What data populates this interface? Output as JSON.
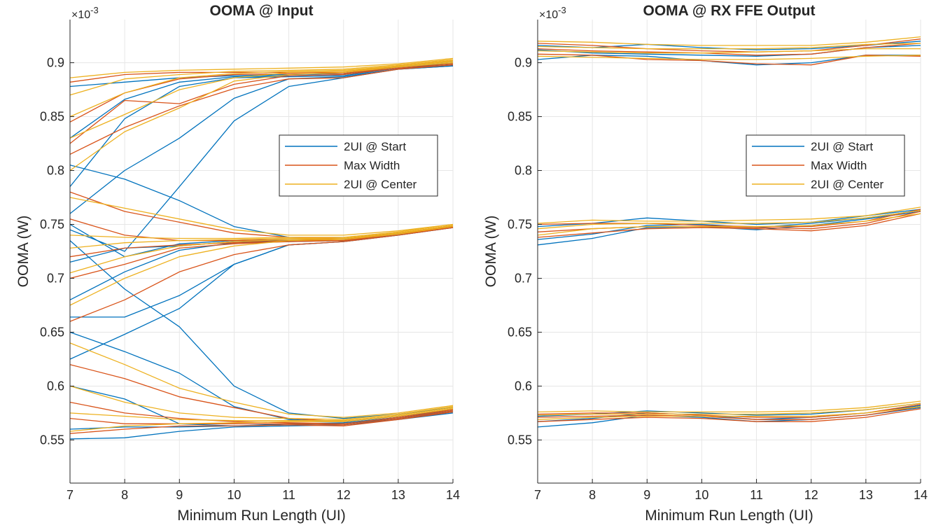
{
  "colors": {
    "start": "#0072bd",
    "max_width": "#d95319",
    "center": "#edb120",
    "grid": "#e6e6e6",
    "axis": "#262626"
  },
  "chart_data": [
    {
      "type": "line",
      "title": "OOMA @ Input",
      "xlabel": "Minimum Run Length (UI)",
      "ylabel": "OOMA (W)",
      "y_exponent": "×10",
      "y_exponent_power": "-3",
      "xlim": [
        7,
        14
      ],
      "ylim": [
        0.51,
        0.94
      ],
      "xticks": [
        "7",
        "8",
        "9",
        "10",
        "11",
        "12",
        "13",
        "14"
      ],
      "yticks": [
        "0.55",
        "0.6",
        "0.65",
        "0.7",
        "0.75",
        "0.8",
        "0.85",
        "0.9"
      ],
      "grid": true,
      "legend_position": "right-middle",
      "legend": [
        "2UI @ Start",
        "Max Width",
        "2UI @ Center"
      ],
      "x": [
        7,
        8,
        9,
        10,
        11,
        12,
        13,
        14
      ],
      "series": [
        {
          "group": "start",
          "values": [
            0.878,
            0.882,
            0.886,
            0.888,
            0.889,
            0.89,
            0.897,
            0.901
          ]
        },
        {
          "group": "start",
          "values": [
            0.83,
            0.866,
            0.882,
            0.887,
            0.888,
            0.889,
            0.896,
            0.899
          ]
        },
        {
          "group": "start",
          "values": [
            0.785,
            0.848,
            0.878,
            0.886,
            0.887,
            0.888,
            0.895,
            0.898
          ]
        },
        {
          "group": "start",
          "values": [
            0.76,
            0.8,
            0.83,
            0.867,
            0.885,
            0.887,
            0.894,
            0.897
          ]
        },
        {
          "group": "start",
          "values": [
            0.745,
            0.725,
            0.785,
            0.846,
            0.878,
            0.886,
            0.894,
            0.897
          ]
        },
        {
          "group": "start",
          "values": [
            0.805,
            0.792,
            0.772,
            0.748,
            0.738,
            0.737,
            0.742,
            0.748
          ]
        },
        {
          "group": "start",
          "values": [
            0.75,
            0.72,
            0.732,
            0.735,
            0.736,
            0.736,
            0.742,
            0.748
          ]
        },
        {
          "group": "start",
          "values": [
            0.715,
            0.728,
            0.73,
            0.734,
            0.735,
            0.735,
            0.741,
            0.748
          ]
        },
        {
          "group": "start",
          "values": [
            0.68,
            0.706,
            0.726,
            0.733,
            0.734,
            0.735,
            0.741,
            0.747
          ]
        },
        {
          "group": "start",
          "values": [
            0.664,
            0.664,
            0.684,
            0.713,
            0.731,
            0.734,
            0.74,
            0.747
          ]
        },
        {
          "group": "start",
          "values": [
            0.625,
            0.648,
            0.672,
            0.713,
            0.731,
            0.734,
            0.74,
            0.747
          ]
        },
        {
          "group": "start",
          "values": [
            0.735,
            0.69,
            0.655,
            0.6,
            0.575,
            0.57,
            0.574,
            0.58
          ]
        },
        {
          "group": "start",
          "values": [
            0.65,
            0.632,
            0.612,
            0.581,
            0.569,
            0.567,
            0.572,
            0.578
          ]
        },
        {
          "group": "start",
          "values": [
            0.6,
            0.588,
            0.565,
            0.563,
            0.565,
            0.566,
            0.571,
            0.577
          ]
        },
        {
          "group": "start",
          "values": [
            0.56,
            0.562,
            0.562,
            0.563,
            0.564,
            0.565,
            0.57,
            0.576
          ]
        },
        {
          "group": "start",
          "values": [
            0.551,
            0.552,
            0.558,
            0.562,
            0.563,
            0.564,
            0.569,
            0.575
          ]
        },
        {
          "group": "max_width",
          "values": [
            0.882,
            0.889,
            0.891,
            0.891,
            0.891,
            0.891,
            0.897,
            0.902
          ]
        },
        {
          "group": "max_width",
          "values": [
            0.845,
            0.872,
            0.885,
            0.889,
            0.89,
            0.89,
            0.896,
            0.9
          ]
        },
        {
          "group": "max_width",
          "values": [
            0.825,
            0.865,
            0.862,
            0.88,
            0.888,
            0.889,
            0.895,
            0.899
          ]
        },
        {
          "group": "max_width",
          "values": [
            0.815,
            0.84,
            0.86,
            0.876,
            0.885,
            0.886,
            0.894,
            0.898
          ]
        },
        {
          "group": "max_width",
          "values": [
            0.78,
            0.762,
            0.752,
            0.742,
            0.738,
            0.737,
            0.742,
            0.749
          ]
        },
        {
          "group": "max_width",
          "values": [
            0.755,
            0.74,
            0.735,
            0.735,
            0.736,
            0.736,
            0.742,
            0.748
          ]
        },
        {
          "group": "max_width",
          "values": [
            0.72,
            0.728,
            0.731,
            0.733,
            0.735,
            0.735,
            0.741,
            0.748
          ]
        },
        {
          "group": "max_width",
          "values": [
            0.7,
            0.713,
            0.728,
            0.732,
            0.734,
            0.735,
            0.741,
            0.747
          ]
        },
        {
          "group": "max_width",
          "values": [
            0.66,
            0.68,
            0.706,
            0.722,
            0.731,
            0.734,
            0.74,
            0.747
          ]
        },
        {
          "group": "max_width",
          "values": [
            0.62,
            0.607,
            0.59,
            0.58,
            0.57,
            0.567,
            0.572,
            0.579
          ]
        },
        {
          "group": "max_width",
          "values": [
            0.585,
            0.575,
            0.57,
            0.567,
            0.566,
            0.565,
            0.571,
            0.578
          ]
        },
        {
          "group": "max_width",
          "values": [
            0.57,
            0.565,
            0.565,
            0.565,
            0.565,
            0.564,
            0.57,
            0.577
          ]
        },
        {
          "group": "max_width",
          "values": [
            0.556,
            0.56,
            0.563,
            0.563,
            0.564,
            0.563,
            0.569,
            0.576
          ]
        },
        {
          "group": "center",
          "values": [
            0.886,
            0.891,
            0.893,
            0.894,
            0.895,
            0.896,
            0.899,
            0.904
          ]
        },
        {
          "group": "center",
          "values": [
            0.87,
            0.885,
            0.889,
            0.892,
            0.893,
            0.894,
            0.898,
            0.903
          ]
        },
        {
          "group": "center",
          "values": [
            0.85,
            0.872,
            0.886,
            0.89,
            0.892,
            0.893,
            0.897,
            0.902
          ]
        },
        {
          "group": "center",
          "values": [
            0.83,
            0.852,
            0.875,
            0.886,
            0.891,
            0.892,
            0.897,
            0.901
          ]
        },
        {
          "group": "center",
          "values": [
            0.8,
            0.836,
            0.858,
            0.883,
            0.889,
            0.891,
            0.896,
            0.9
          ]
        },
        {
          "group": "center",
          "values": [
            0.775,
            0.765,
            0.755,
            0.745,
            0.74,
            0.74,
            0.744,
            0.75
          ]
        },
        {
          "group": "center",
          "values": [
            0.74,
            0.738,
            0.737,
            0.737,
            0.738,
            0.738,
            0.743,
            0.75
          ]
        },
        {
          "group": "center",
          "values": [
            0.728,
            0.733,
            0.735,
            0.736,
            0.737,
            0.737,
            0.742,
            0.749
          ]
        },
        {
          "group": "center",
          "values": [
            0.705,
            0.72,
            0.73,
            0.734,
            0.736,
            0.737,
            0.742,
            0.749
          ]
        },
        {
          "group": "center",
          "values": [
            0.675,
            0.7,
            0.72,
            0.73,
            0.735,
            0.736,
            0.741,
            0.748
          ]
        },
        {
          "group": "center",
          "values": [
            0.64,
            0.62,
            0.598,
            0.585,
            0.574,
            0.571,
            0.575,
            0.582
          ]
        },
        {
          "group": "center",
          "values": [
            0.6,
            0.585,
            0.575,
            0.571,
            0.57,
            0.569,
            0.574,
            0.581
          ]
        },
        {
          "group": "center",
          "values": [
            0.575,
            0.572,
            0.569,
            0.568,
            0.568,
            0.568,
            0.573,
            0.58
          ]
        },
        {
          "group": "center",
          "values": [
            0.558,
            0.563,
            0.565,
            0.566,
            0.567,
            0.567,
            0.572,
            0.579
          ]
        }
      ]
    },
    {
      "type": "line",
      "title": "OOMA @ RX FFE Output",
      "xlabel": "Minimum Run Length (UI)",
      "ylabel": "OOMA (W)",
      "y_exponent": "×10",
      "y_exponent_power": "-3",
      "xlim": [
        7,
        14
      ],
      "ylim": [
        0.51,
        0.94
      ],
      "xticks": [
        "7",
        "8",
        "9",
        "10",
        "11",
        "12",
        "13",
        "14"
      ],
      "yticks": [
        "0.55",
        "0.6",
        "0.65",
        "0.7",
        "0.75",
        "0.8",
        "0.85",
        "0.9"
      ],
      "grid": true,
      "legend_position": "right-middle",
      "legend": [
        "2UI @ Start",
        "Max Width",
        "2UI @ Center"
      ],
      "x": [
        7,
        8,
        9,
        10,
        11,
        12,
        13,
        14
      ],
      "series": [
        {
          "group": "start",
          "values": [
            0.903,
            0.907,
            0.906,
            0.902,
            0.898,
            0.9,
            0.907,
            0.907
          ]
        },
        {
          "group": "start",
          "values": [
            0.912,
            0.909,
            0.908,
            0.907,
            0.906,
            0.908,
            0.914,
            0.916
          ]
        },
        {
          "group": "start",
          "values": [
            0.916,
            0.914,
            0.917,
            0.914,
            0.912,
            0.913,
            0.916,
            0.92
          ]
        },
        {
          "group": "start",
          "values": [
            0.731,
            0.737,
            0.747,
            0.748,
            0.745,
            0.749,
            0.755,
            0.762
          ]
        },
        {
          "group": "start",
          "values": [
            0.736,
            0.741,
            0.749,
            0.75,
            0.747,
            0.751,
            0.756,
            0.763
          ]
        },
        {
          "group": "start",
          "values": [
            0.748,
            0.751,
            0.756,
            0.753,
            0.75,
            0.752,
            0.758,
            0.764
          ]
        },
        {
          "group": "start",
          "values": [
            0.562,
            0.566,
            0.573,
            0.571,
            0.567,
            0.569,
            0.573,
            0.58
          ]
        },
        {
          "group": "start",
          "values": [
            0.567,
            0.57,
            0.575,
            0.573,
            0.569,
            0.571,
            0.575,
            0.582
          ]
        },
        {
          "group": "start",
          "values": [
            0.572,
            0.574,
            0.577,
            0.575,
            0.573,
            0.574,
            0.578,
            0.584
          ]
        },
        {
          "group": "max_width",
          "values": [
            0.908,
            0.907,
            0.903,
            0.902,
            0.899,
            0.898,
            0.907,
            0.906
          ]
        },
        {
          "group": "max_width",
          "values": [
            0.913,
            0.911,
            0.91,
            0.909,
            0.907,
            0.908,
            0.914,
            0.918
          ]
        },
        {
          "group": "max_width",
          "values": [
            0.918,
            0.916,
            0.913,
            0.911,
            0.91,
            0.911,
            0.916,
            0.922
          ]
        },
        {
          "group": "max_width",
          "values": [
            0.738,
            0.742,
            0.746,
            0.747,
            0.746,
            0.744,
            0.749,
            0.76
          ]
        },
        {
          "group": "max_width",
          "values": [
            0.743,
            0.746,
            0.748,
            0.748,
            0.747,
            0.746,
            0.751,
            0.762
          ]
        },
        {
          "group": "max_width",
          "values": [
            0.75,
            0.751,
            0.751,
            0.749,
            0.748,
            0.748,
            0.753,
            0.764
          ]
        },
        {
          "group": "max_width",
          "values": [
            0.567,
            0.569,
            0.571,
            0.57,
            0.567,
            0.567,
            0.571,
            0.579
          ]
        },
        {
          "group": "max_width",
          "values": [
            0.571,
            0.572,
            0.573,
            0.572,
            0.569,
            0.569,
            0.573,
            0.581
          ]
        },
        {
          "group": "max_width",
          "values": [
            0.574,
            0.575,
            0.575,
            0.573,
            0.571,
            0.571,
            0.575,
            0.583
          ]
        },
        {
          "group": "center",
          "values": [
            0.906,
            0.905,
            0.904,
            0.903,
            0.903,
            0.904,
            0.906,
            0.907
          ]
        },
        {
          "group": "center",
          "values": [
            0.911,
            0.91,
            0.909,
            0.909,
            0.91,
            0.911,
            0.913,
            0.913
          ]
        },
        {
          "group": "center",
          "values": [
            0.915,
            0.914,
            0.913,
            0.913,
            0.913,
            0.914,
            0.917,
            0.918
          ]
        },
        {
          "group": "center",
          "values": [
            0.92,
            0.919,
            0.917,
            0.916,
            0.916,
            0.916,
            0.919,
            0.924
          ]
        },
        {
          "group": "center",
          "values": [
            0.74,
            0.746,
            0.748,
            0.748,
            0.748,
            0.749,
            0.753,
            0.76
          ]
        },
        {
          "group": "center",
          "values": [
            0.746,
            0.75,
            0.751,
            0.751,
            0.751,
            0.752,
            0.756,
            0.763
          ]
        },
        {
          "group": "center",
          "values": [
            0.751,
            0.754,
            0.753,
            0.753,
            0.754,
            0.755,
            0.758,
            0.766
          ]
        },
        {
          "group": "center",
          "values": [
            0.569,
            0.571,
            0.572,
            0.572,
            0.572,
            0.572,
            0.575,
            0.581
          ]
        },
        {
          "group": "center",
          "values": [
            0.573,
            0.574,
            0.574,
            0.574,
            0.574,
            0.575,
            0.578,
            0.584
          ]
        },
        {
          "group": "center",
          "values": [
            0.576,
            0.577,
            0.576,
            0.576,
            0.576,
            0.577,
            0.58,
            0.586
          ]
        }
      ]
    }
  ]
}
